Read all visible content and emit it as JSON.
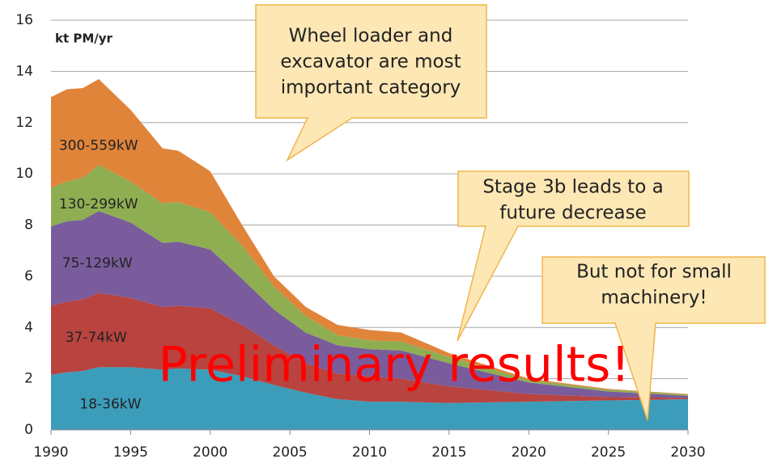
{
  "chart_data": {
    "type": "stacked_area",
    "y_unit_label": "kt PM/yr",
    "x": [
      1990,
      1991,
      1992,
      1993,
      1995,
      1997,
      1998,
      2000,
      2002,
      2004,
      2006,
      2008,
      2010,
      2012,
      2015,
      2020,
      2025,
      2030
    ],
    "series": [
      {
        "name": "18-36kW",
        "color": "#3c9dbb",
        "values": [
          2.15,
          2.25,
          2.3,
          2.45,
          2.45,
          2.35,
          2.4,
          2.35,
          2.1,
          1.75,
          1.45,
          1.2,
          1.1,
          1.1,
          1.05,
          1.1,
          1.15,
          1.2
        ]
      },
      {
        "name": "37-74kW",
        "color": "#b8433f",
        "values": [
          2.7,
          2.75,
          2.8,
          2.9,
          2.7,
          2.45,
          2.45,
          2.4,
          2.0,
          1.55,
          1.15,
          1.0,
          1.0,
          0.9,
          0.65,
          0.3,
          0.13,
          0.05
        ]
      },
      {
        "name": "75-129kW",
        "color": "#7a5c9c",
        "values": [
          3.1,
          3.15,
          3.1,
          3.2,
          2.95,
          2.5,
          2.5,
          2.3,
          1.8,
          1.4,
          1.2,
          1.1,
          1.05,
          1.1,
          0.9,
          0.45,
          0.22,
          0.08
        ]
      },
      {
        "name": "130-299kW",
        "color": "#8fae52",
        "values": [
          1.5,
          1.55,
          1.65,
          1.8,
          1.6,
          1.55,
          1.55,
          1.45,
          1.3,
          0.9,
          0.65,
          0.4,
          0.35,
          0.35,
          0.25,
          0.1,
          0.07,
          0.05
        ]
      },
      {
        "name": "300-559kW",
        "color": "#e0843a",
        "values": [
          3.55,
          3.6,
          3.5,
          3.35,
          2.8,
          2.15,
          2.0,
          1.6,
          0.8,
          0.4,
          0.35,
          0.4,
          0.4,
          0.35,
          0.15,
          0.05,
          0.03,
          0.02
        ]
      }
    ],
    "xlim": [
      1990,
      2030
    ],
    "xticks": [
      1990,
      1995,
      2000,
      2005,
      2010,
      2015,
      2020,
      2025,
      2030
    ],
    "ylim": [
      0,
      16
    ],
    "yticks": [
      0,
      2,
      4,
      6,
      8,
      10,
      12,
      14,
      16
    ],
    "grid": true,
    "watermark": "Preliminary results!",
    "callouts": [
      [
        "Wheel loader and",
        "excavator are most",
        "important category"
      ],
      [
        "Stage 3b leads to a",
        "future decrease"
      ],
      [
        "But not for small",
        "machinery!"
      ]
    ]
  }
}
